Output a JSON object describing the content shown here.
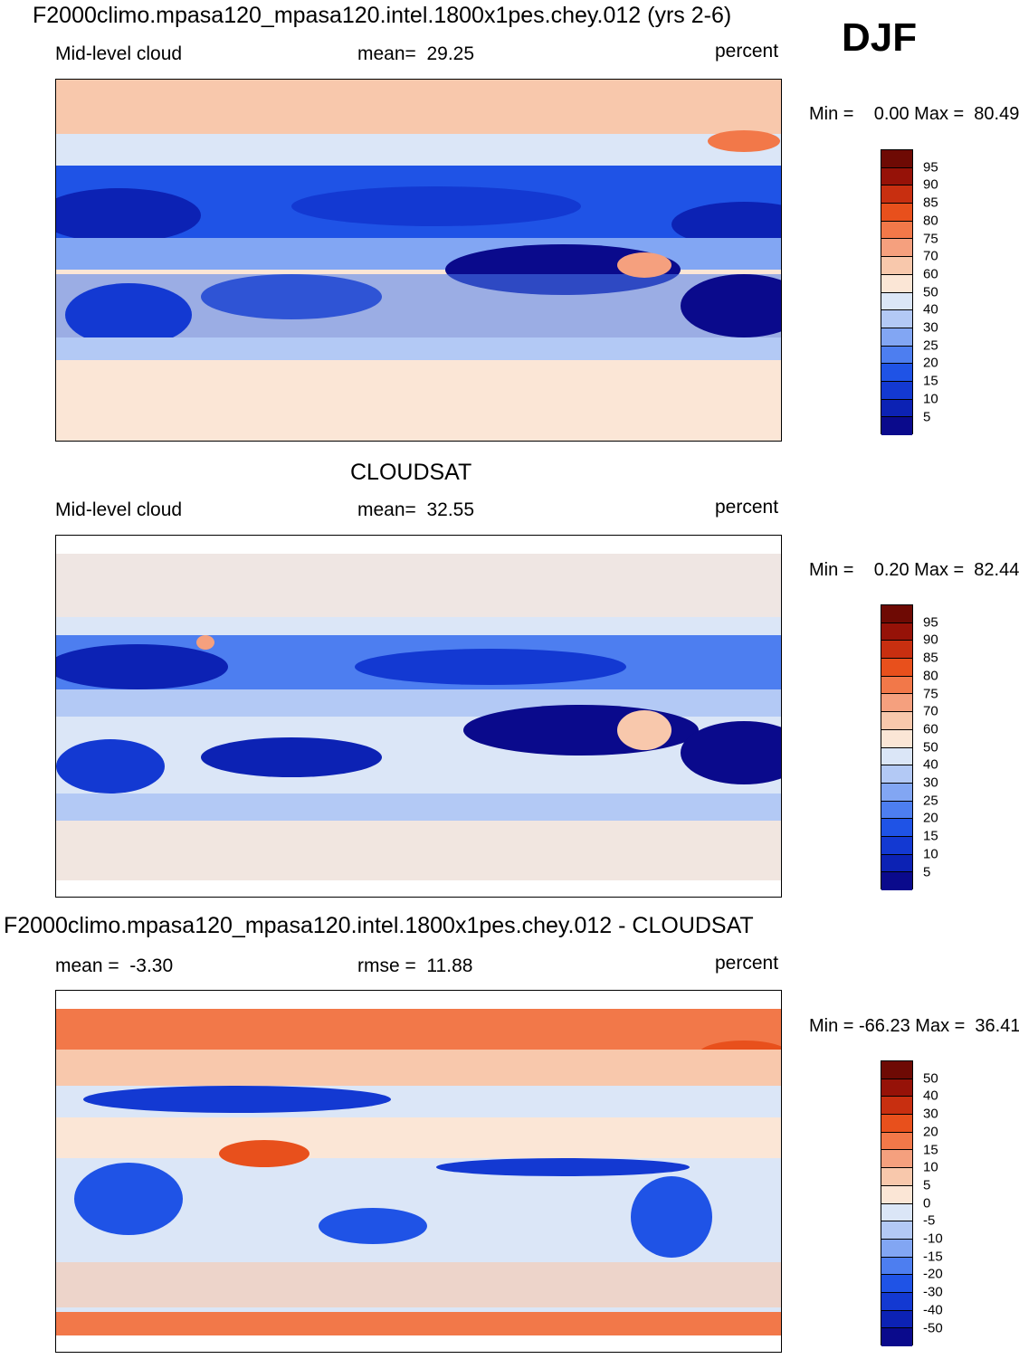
{
  "season": "DJF",
  "panels": [
    {
      "title": "F2000climo.mpasa120_mpasa120.intel.1800x1pes.chey.012 (yrs 2-6)",
      "left_label": "Mid-level cloud",
      "center_label": "mean=  29.25",
      "right_label": "percent",
      "minmax": "Min =    0.00 Max =  80.49",
      "colorbar_ticks": [
        "95",
        "90",
        "85",
        "80",
        "75",
        "70",
        "60",
        "50",
        "40",
        "30",
        "25",
        "20",
        "15",
        "10",
        "5"
      ]
    },
    {
      "title": "CLOUDSAT",
      "left_label": "Mid-level cloud",
      "center_label": "mean=  32.55",
      "right_label": "percent",
      "minmax": "Min =    0.20 Max =  82.44",
      "colorbar_ticks": [
        "95",
        "90",
        "85",
        "80",
        "75",
        "70",
        "60",
        "50",
        "40",
        "30",
        "25",
        "20",
        "15",
        "10",
        "5"
      ]
    },
    {
      "title": "F2000climo.mpasa120_mpasa120.intel.1800x1pes.chey.012 - CLOUDSAT",
      "left_label": "mean =  -3.30",
      "center_label": "rmse =  11.88",
      "right_label": "percent",
      "minmax": "Min = -66.23 Max =  36.41",
      "colorbar_ticks": [
        "50",
        "40",
        "30",
        "20",
        "15",
        "10",
        "5",
        "0",
        "-5",
        "-10",
        "-15",
        "-20",
        "-30",
        "-40",
        "-50"
      ]
    }
  ],
  "colors": {
    "scale": [
      "#0a0a8c",
      "#0c22b4",
      "#1339d2",
      "#1f53e6",
      "#4d7ef0",
      "#82a6f3",
      "#b3c9f5",
      "#dbe6f7",
      "#fbe6d6",
      "#f8c8ac",
      "#f5a07e",
      "#f27849",
      "#e8501c",
      "#c82f10",
      "#961208",
      "#6e0a04"
    ]
  }
}
